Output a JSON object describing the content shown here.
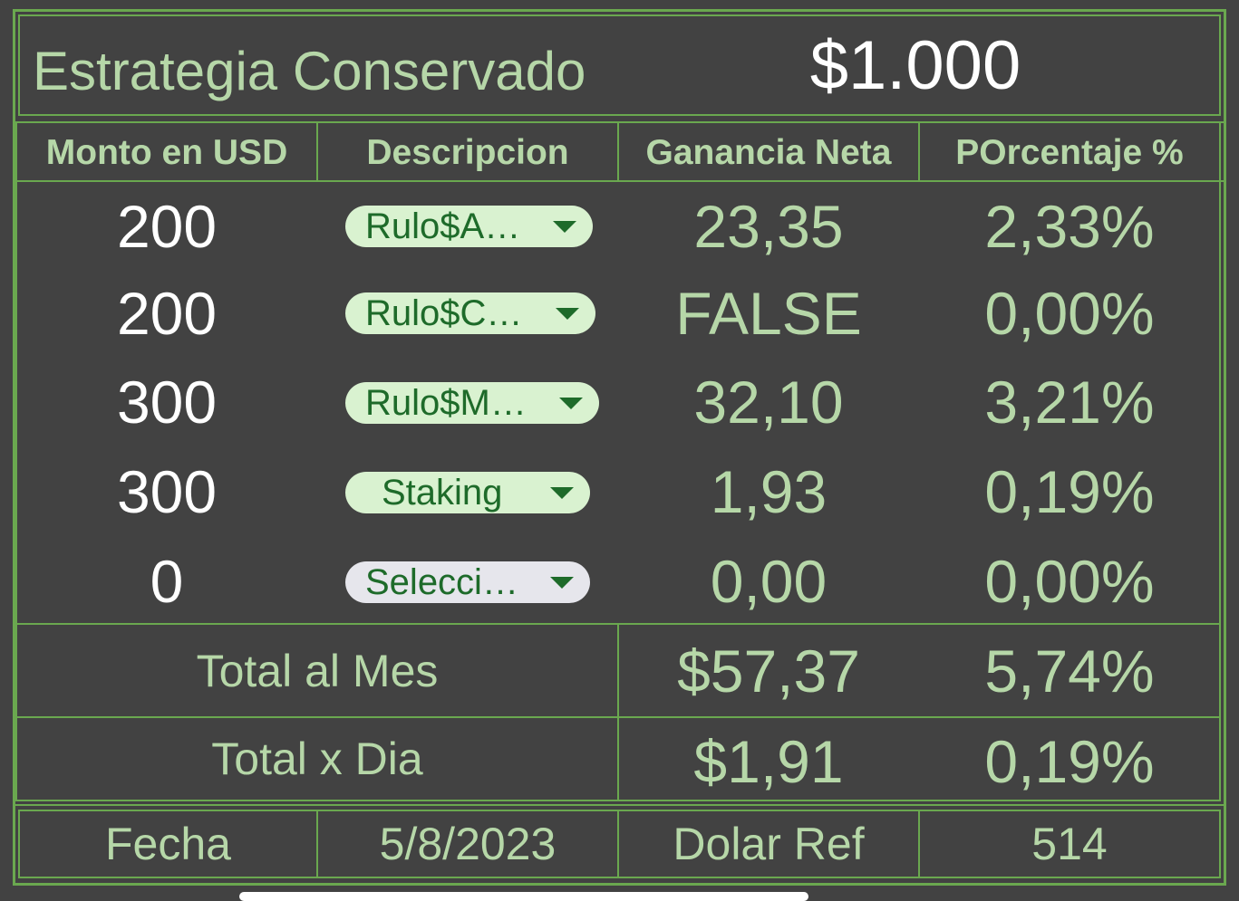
{
  "header": {
    "title": "Estrategia Conservado",
    "amount": "$1.000"
  },
  "columns": [
    "Monto en USD",
    "Descripcion",
    "Ganancia Neta",
    "POrcentaje %"
  ],
  "rows": [
    {
      "monto": "200",
      "descripcion": "Rulo$A…",
      "ganancia": "23,35",
      "porcentaje": "2,33%"
    },
    {
      "monto": "200",
      "descripcion": "Rulo$C…",
      "ganancia": "FALSE",
      "porcentaje": "0,00%"
    },
    {
      "monto": "300",
      "descripcion": "Rulo$M…",
      "ganancia": "32,10",
      "porcentaje": "3,21%"
    },
    {
      "monto": "300",
      "descripcion": "Staking",
      "ganancia": "1,93",
      "porcentaje": "0,19%"
    },
    {
      "monto": "0",
      "descripcion": "Selecci…",
      "ganancia": "0,00",
      "porcentaje": "0,00%"
    }
  ],
  "totals": {
    "mes": {
      "label": "Total al Mes",
      "ganancia": "$57,37",
      "porcentaje": "5,74%"
    },
    "dia": {
      "label": "Total x Dia",
      "ganancia": "$1,91",
      "porcentaje": "0,19%"
    }
  },
  "footer": {
    "fecha_label": "Fecha",
    "fecha_value": "5/8/2023",
    "dolar_label": "Dolar Ref",
    "dolar_value": "514"
  },
  "colors": {
    "background": "#424242",
    "grid": "#6aa84f",
    "text_green": "#b6d7a8",
    "chip_bg": "#d9f2d0",
    "chip_empty_bg": "#e6e6ec",
    "chip_text": "#1e6b2a"
  },
  "icons": {
    "dropdown": "triangle-down-icon"
  }
}
